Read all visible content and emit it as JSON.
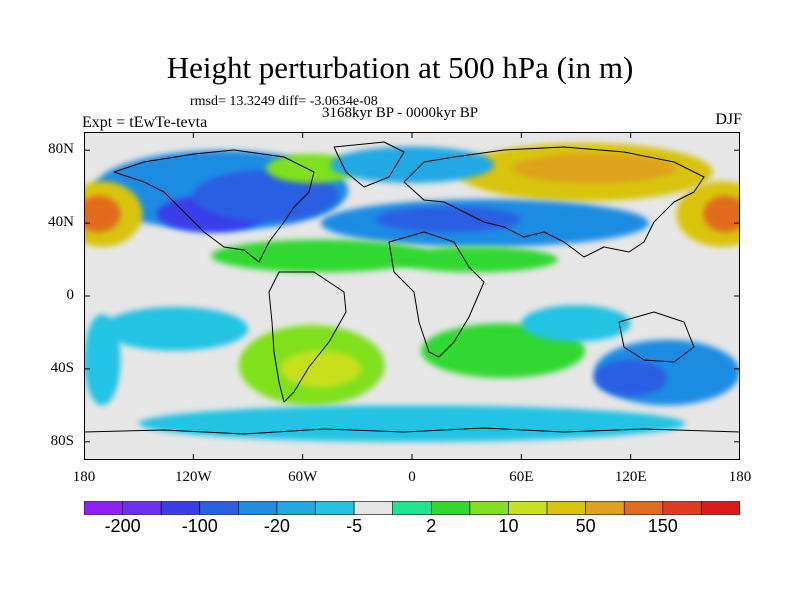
{
  "header": {
    "title": "Height perturbation at 500 hPa (in m)",
    "stats": "rmsd= 13.3249 diff= -3.0634e-08",
    "period": "3168kyr BP - 0000kyr BP",
    "experiment": "Expt = tEwTe-tevta",
    "season": "DJF"
  },
  "axes": {
    "lat_ticks": [
      {
        "value": 80,
        "label": "80N"
      },
      {
        "value": 40,
        "label": "40N"
      },
      {
        "value": 0,
        "label": "0"
      },
      {
        "value": -40,
        "label": "40S"
      },
      {
        "value": -80,
        "label": "80S"
      }
    ],
    "lon_ticks": [
      {
        "value": -180,
        "label": "180"
      },
      {
        "value": -120,
        "label": "120W"
      },
      {
        "value": -60,
        "label": "60W"
      },
      {
        "value": 0,
        "label": "0"
      },
      {
        "value": 60,
        "label": "60E"
      },
      {
        "value": 120,
        "label": "120E"
      },
      {
        "value": 180,
        "label": "180"
      }
    ],
    "lat_range": [
      -90,
      90
    ],
    "lon_range": [
      -180,
      180
    ]
  },
  "colorbar": {
    "colors": [
      "#8f1ff5",
      "#6e2ef0",
      "#3a3ee8",
      "#2a5fe3",
      "#1e8ce3",
      "#21a8e3",
      "#22c3e3",
      "#e6e6e6",
      "#1ee58f",
      "#30d830",
      "#80e01e",
      "#c8e01e",
      "#d8c40e",
      "#e0a21e",
      "#e26b1e",
      "#e03a20",
      "#d81c1c"
    ],
    "labels": [
      {
        "after_box": 1,
        "text": "-200"
      },
      {
        "after_box": 3,
        "text": "-100"
      },
      {
        "after_box": 5,
        "text": "-20"
      },
      {
        "after_box": 7,
        "text": "-5"
      },
      {
        "after_box": 9,
        "text": "2"
      },
      {
        "after_box": 11,
        "text": "10"
      },
      {
        "after_box": 13,
        "text": "50"
      },
      {
        "after_box": 15,
        "text": "150"
      }
    ]
  },
  "field_blobs": [
    {
      "lon": -105,
      "lat": 58,
      "rx": 70,
      "ry": 22,
      "level": 4
    },
    {
      "lon": -110,
      "lat": 45,
      "rx": 30,
      "ry": 10,
      "level": 2
    },
    {
      "lon": -80,
      "lat": 55,
      "rx": 40,
      "ry": 14,
      "level": 3
    },
    {
      "lon": -55,
      "lat": 70,
      "rx": 25,
      "ry": 8,
      "level": 10
    },
    {
      "lon": -170,
      "lat": 45,
      "rx": 22,
      "ry": 18,
      "level": 12
    },
    {
      "lon": -172,
      "lat": 45,
      "rx": 12,
      "ry": 10,
      "level": 14
    },
    {
      "lon": 95,
      "lat": 68,
      "rx": 70,
      "ry": 16,
      "level": 12
    },
    {
      "lon": 100,
      "lat": 70,
      "rx": 45,
      "ry": 8,
      "level": 13
    },
    {
      "lon": 170,
      "lat": 45,
      "rx": 25,
      "ry": 18,
      "level": 12
    },
    {
      "lon": 172,
      "lat": 45,
      "rx": 12,
      "ry": 10,
      "level": 14
    },
    {
      "lon": 40,
      "lat": 40,
      "rx": 90,
      "ry": 13,
      "level": 4
    },
    {
      "lon": 20,
      "lat": 42,
      "rx": 40,
      "ry": 7,
      "level": 3
    },
    {
      "lon": 0,
      "lat": 72,
      "rx": 45,
      "ry": 10,
      "level": 5
    },
    {
      "lon": -50,
      "lat": 22,
      "rx": 60,
      "ry": 9,
      "level": 9
    },
    {
      "lon": 35,
      "lat": 20,
      "rx": 45,
      "ry": 7,
      "level": 9
    },
    {
      "lon": -55,
      "lat": -38,
      "rx": 40,
      "ry": 22,
      "level": 10
    },
    {
      "lon": -50,
      "lat": -40,
      "rx": 22,
      "ry": 10,
      "level": 11
    },
    {
      "lon": 50,
      "lat": -30,
      "rx": 45,
      "ry": 15,
      "level": 9
    },
    {
      "lon": 140,
      "lat": -42,
      "rx": 40,
      "ry": 18,
      "level": 4
    },
    {
      "lon": 120,
      "lat": -45,
      "rx": 20,
      "ry": 10,
      "level": 3
    },
    {
      "lon": -170,
      "lat": -35,
      "rx": 10,
      "ry": 25,
      "level": 6
    },
    {
      "lon": -130,
      "lat": -18,
      "rx": 40,
      "ry": 12,
      "level": 6
    },
    {
      "lon": 90,
      "lat": -15,
      "rx": 30,
      "ry": 10,
      "level": 6
    },
    {
      "lon": 0,
      "lat": -70,
      "rx": 150,
      "ry": 10,
      "level": 6
    }
  ]
}
